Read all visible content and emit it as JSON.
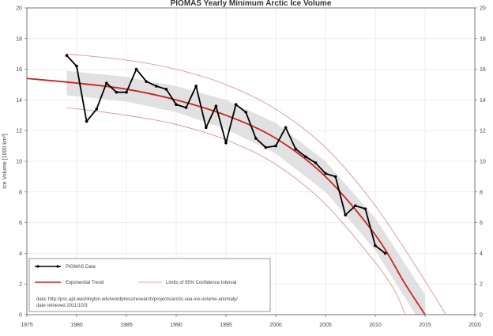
{
  "chart_data": {
    "type": "line",
    "title": "PIOMAS Yearly Minimum Arctic Ice Volume",
    "ylabel": "Ice Volume [1000 km³]",
    "xlabel": "",
    "xlim": [
      1975,
      2020
    ],
    "ylim": [
      0,
      20
    ],
    "x_ticks": [
      "1975",
      "1980",
      "1985",
      "1990",
      "1995",
      "2000",
      "2005",
      "2010",
      "2015",
      "2020"
    ],
    "y_ticks": [
      "0",
      "2",
      "4",
      "6",
      "8",
      "10",
      "12",
      "14",
      "16",
      "18",
      "20"
    ],
    "grid": true,
    "series": [
      {
        "name": "PIOMAS Data",
        "color": "#000000",
        "x": [
          1979,
          1980,
          1981,
          1982,
          1983,
          1984,
          1985,
          1986,
          1987,
          1988,
          1989,
          1990,
          1991,
          1992,
          1993,
          1994,
          1995,
          1996,
          1997,
          1998,
          1999,
          2000,
          2001,
          2002,
          2003,
          2004,
          2005,
          2006,
          2007,
          2008,
          2009,
          2010,
          2011
        ],
        "y": [
          16.9,
          16.2,
          12.6,
          13.4,
          15.1,
          14.5,
          14.5,
          16.0,
          15.2,
          14.9,
          14.7,
          13.7,
          13.5,
          14.9,
          12.2,
          13.6,
          11.2,
          13.7,
          13.2,
          11.5,
          10.9,
          11.0,
          12.2,
          10.8,
          10.3,
          9.9,
          9.2,
          9.0,
          6.5,
          7.1,
          6.9,
          4.5,
          4.0
        ]
      },
      {
        "name": "Exponential Trend",
        "color": "#cc2222",
        "x": [
          1975,
          1980,
          1985,
          1990,
          1995,
          2000,
          2005,
          2010,
          2013,
          2015,
          2016
        ],
        "y": [
          15.4,
          15.1,
          14.7,
          14.0,
          13.0,
          11.5,
          9.0,
          5.2,
          2.0,
          0.0,
          -1.0
        ]
      },
      {
        "name": "Limits of 95% Confidence Interval",
        "color": "#d98a84",
        "x": [
          1979,
          1985,
          1990,
          1995,
          2000,
          2005,
          2010,
          2015,
          2018
        ],
        "y": [
          17.0,
          16.6,
          16.0,
          15.0,
          13.4,
          10.9,
          7.1,
          2.2,
          -1.0
        ]
      },
      {
        "name": "Lower limit",
        "color": "#d98a84",
        "x": [
          1979,
          1985,
          1990,
          1995,
          2000,
          2005,
          2010,
          2012,
          2013
        ],
        "y": [
          13.5,
          13.0,
          12.4,
          11.4,
          9.8,
          7.2,
          3.4,
          1.5,
          0.0
        ]
      }
    ],
    "band": {
      "color": "#dcdcdc",
      "x": [
        1979,
        1985,
        1990,
        1995,
        2000,
        2005,
        2010,
        2015
      ],
      "upper": [
        15.9,
        15.5,
        14.9,
        14.0,
        12.5,
        10.0,
        6.3,
        1.3
      ],
      "lower": [
        14.3,
        13.9,
        13.2,
        12.1,
        10.5,
        8.0,
        4.2,
        -1.0
      ]
    },
    "legend": {
      "placement": "bottom-left",
      "items": [
        {
          "label": "PIOMAS Data",
          "style": "line-markers",
          "color": "#000000"
        },
        {
          "label": "Exponential Trend",
          "style": "line",
          "color": "#cc2222"
        },
        {
          "label": "Limits of 95% Confidence Interval",
          "style": "line",
          "color": "#d98a84"
        }
      ],
      "note_line1": "data: http://psc.apl.washington.edu/wordpress/research/projects/arctic-sea-ice-volume-anomaly/",
      "note_line2": "date retrieved 2011/10/3"
    }
  }
}
